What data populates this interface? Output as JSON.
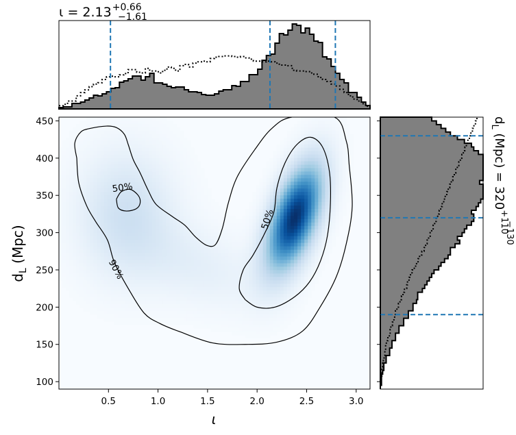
{
  "chart_data": [
    {
      "id": "top-histogram",
      "type": "histogram",
      "xlim": [
        0.0,
        3.14
      ],
      "title_parts": {
        "prefix": "ι = 2.13",
        "sup": "+0.66",
        "sub": "−1.61"
      },
      "quantile_lines": [
        0.52,
        2.13,
        2.79
      ],
      "posterior_counts": [
        2,
        3,
        3,
        8,
        8,
        10,
        13,
        16,
        20,
        19,
        22,
        25,
        30,
        31,
        39,
        41,
        44,
        48,
        48,
        42,
        47,
        52,
        38,
        38,
        36,
        33,
        31,
        32,
        32,
        28,
        25,
        25,
        24,
        21,
        20,
        20,
        22,
        26,
        28,
        28,
        34,
        33,
        40,
        40,
        50,
        50,
        58,
        71,
        78,
        80,
        96,
        110,
        108,
        115,
        124,
        122,
        111,
        118,
        109,
        99,
        97,
        76,
        73,
        62,
        52,
        43,
        38,
        24,
        24,
        17,
        10,
        5
      ],
      "prior_counts": [
        5,
        7,
        12,
        12,
        20,
        25,
        29,
        34,
        38,
        40,
        45,
        49,
        50,
        49,
        52,
        54,
        60,
        60,
        56,
        55,
        62,
        58,
        58,
        55,
        59,
        64,
        62,
        58,
        66,
        68,
        64,
        70,
        72,
        73,
        72,
        77,
        79,
        80,
        81,
        81,
        80,
        79,
        80,
        78,
        76,
        73,
        73,
        72,
        73,
        72,
        70,
        67,
        67,
        66,
        59,
        58,
        58,
        57,
        55,
        53,
        48,
        45,
        42,
        38,
        35,
        30,
        25,
        20,
        15,
        12,
        8,
        4
      ]
    },
    {
      "id": "joint-density",
      "type": "heatmap",
      "xlabel": "ι",
      "ylabel": "d_L (Mpc)",
      "xlim": [
        0.0,
        3.14
      ],
      "ylim": [
        90,
        455
      ],
      "xticks": [
        0.5,
        1.0,
        1.5,
        2.0,
        2.5,
        3.0
      ],
      "yticks": [
        100,
        150,
        200,
        250,
        300,
        350,
        400,
        450
      ],
      "colormap": "Blues",
      "density_components": [
        {
          "x": 2.38,
          "y": 320,
          "sx": 0.19,
          "sy": 48,
          "rho": 0.55,
          "weight": 1.0
        },
        {
          "x": 0.68,
          "y": 325,
          "sx": 0.33,
          "sy": 58,
          "rho": 0.0,
          "weight": 0.2
        },
        {
          "x": 1.4,
          "y": 255,
          "sx": 0.45,
          "sy": 40,
          "rho": -0.4,
          "weight": 0.09
        }
      ],
      "contours": [
        {
          "label": "50%",
          "points": [
            [
              0.58,
              345
            ],
            [
              0.63,
              355
            ],
            [
              0.72,
              358
            ],
            [
              0.8,
              350
            ],
            [
              0.82,
              340
            ],
            [
              0.78,
              332
            ],
            [
              0.68,
              329
            ],
            [
              0.6,
              333
            ],
            [
              0.58,
              345
            ]
          ]
        },
        {
          "label": "50%",
          "points": [
            [
              1.88,
              210
            ],
            [
              1.82,
              225
            ],
            [
              1.86,
              250
            ],
            [
              1.96,
              270
            ],
            [
              2.08,
              300
            ],
            [
              2.17,
              328
            ],
            [
              2.2,
              360
            ],
            [
              2.28,
              393
            ],
            [
              2.4,
              418
            ],
            [
              2.54,
              428
            ],
            [
              2.66,
              415
            ],
            [
              2.73,
              382
            ],
            [
              2.74,
              340
            ],
            [
              2.71,
              296
            ],
            [
              2.64,
              262
            ],
            [
              2.53,
              234
            ],
            [
              2.38,
              214
            ],
            [
              2.18,
              200
            ],
            [
              2.0,
              200
            ],
            [
              1.88,
              210
            ]
          ]
        },
        {
          "label": "90%",
          "points": [
            [
              0.18,
              400
            ],
            [
              0.16,
              420
            ],
            [
              0.22,
              435
            ],
            [
              0.32,
              440
            ],
            [
              0.48,
              443
            ],
            [
              0.58,
              441
            ],
            [
              0.66,
              432
            ],
            [
              0.7,
              418
            ],
            [
              0.75,
              398
            ],
            [
              0.82,
              380
            ],
            [
              0.9,
              357
            ],
            [
              0.98,
              338
            ],
            [
              1.14,
              322
            ],
            [
              1.27,
              310
            ],
            [
              1.38,
              294
            ],
            [
              1.49,
              283
            ],
            [
              1.58,
              284
            ],
            [
              1.65,
              306
            ],
            [
              1.71,
              340
            ],
            [
              1.8,
              375
            ],
            [
              1.98,
              412
            ],
            [
              2.15,
              440
            ],
            [
              2.35,
              455
            ],
            [
              2.78,
              455
            ],
            [
              2.9,
              423
            ],
            [
              2.93,
              390
            ],
            [
              2.96,
              335
            ],
            [
              2.9,
              285
            ],
            [
              2.8,
              241
            ],
            [
              2.64,
              201
            ],
            [
              2.46,
              168
            ],
            [
              2.2,
              153
            ],
            [
              1.88,
              150
            ],
            [
              1.55,
              152
            ],
            [
              1.22,
              167
            ],
            [
              1.02,
              178
            ],
            [
              0.86,
              192
            ],
            [
              0.7,
              225
            ],
            [
              0.56,
              260
            ],
            [
              0.49,
              290
            ],
            [
              0.37,
              315
            ],
            [
              0.28,
              336
            ],
            [
              0.2,
              367
            ],
            [
              0.18,
              400
            ]
          ]
        }
      ],
      "contour_label_positions": [
        {
          "text": "50%",
          "x": 0.64,
          "y": 361,
          "rotate": -8
        },
        {
          "text": "50%",
          "x": 2.1,
          "y": 318,
          "rotate": -72
        },
        {
          "text": "90%",
          "x": 0.58,
          "y": 251,
          "rotate": 62
        }
      ]
    },
    {
      "id": "right-histogram",
      "type": "histogram",
      "orientation": "horizontal",
      "ylim": [
        90,
        455
      ],
      "title_parts": {
        "prefix": "d",
        "prefix_sub": "L",
        "middle": " (Mpc) = 320",
        "sup": "+110",
        "sub": "−130"
      },
      "quantile_lines": [
        190,
        320,
        430
      ],
      "bin_start": 90,
      "bin_width": 5,
      "posterior_counts": [
        0,
        1,
        1,
        1,
        2,
        3,
        3,
        5,
        5,
        8,
        8,
        10,
        10,
        13,
        13,
        16,
        16,
        20,
        20,
        24,
        24,
        28,
        28,
        31,
        32,
        32,
        36,
        38,
        40,
        42,
        44,
        46,
        50,
        52,
        55,
        58,
        60,
        60,
        64,
        68,
        66,
        70,
        72,
        74,
        78,
        80,
        80,
        78,
        82,
        84,
        86,
        90,
        96,
        90,
        88,
        85,
        92,
        100,
        98,
        96,
        94,
        90,
        88,
        84,
        80,
        78,
        72,
        66,
        60,
        56,
        52,
        48,
        44
      ],
      "prior_counts": [
        0,
        1,
        1,
        2,
        2,
        2,
        3,
        4,
        5,
        6,
        7,
        7,
        8,
        10,
        12,
        13,
        14,
        16,
        18,
        19,
        20,
        22,
        24,
        26,
        28,
        30,
        32,
        35,
        36,
        38,
        40,
        42,
        45,
        48,
        50,
        52,
        55,
        58,
        60,
        62,
        64,
        66,
        68,
        70,
        72,
        74,
        76,
        78,
        80,
        82,
        84,
        86,
        88,
        90,
        92,
        94,
        96,
        98,
        100,
        102,
        104,
        106,
        108,
        110,
        112,
        114,
        116,
        118,
        120,
        122,
        124,
        126,
        128
      ]
    }
  ]
}
